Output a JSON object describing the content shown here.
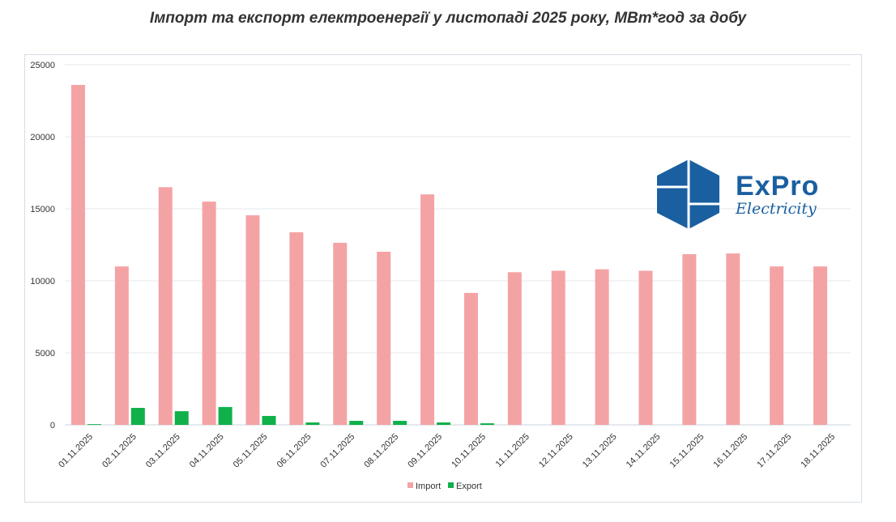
{
  "chart_data": {
    "type": "bar",
    "title": "Імпорт та експорт електроенергії у листопаді 2025 року, МВт*год за добу",
    "categories": [
      "01.11.2025",
      "02.11.2025",
      "03.11.2025",
      "04.11.2025",
      "05.11.2025",
      "06.11.2025",
      "07.11.2025",
      "08.11.2025",
      "09.11.2025",
      "10.11.2025",
      "11.11.2025",
      "12.11.2025",
      "13.11.2025",
      "14.11.2025",
      "15.11.2025",
      "16.11.2025",
      "17.11.2025",
      "18.11.2025"
    ],
    "series": [
      {
        "name": "Import",
        "color": "#f4a3a5",
        "values": [
          23600,
          11000,
          16500,
          15500,
          14550,
          13370,
          12640,
          12020,
          16000,
          9160,
          10600,
          10700,
          10800,
          10700,
          11850,
          11900,
          11000,
          11000
        ]
      },
      {
        "name": "Export",
        "color": "#10b04a",
        "values": [
          50,
          1180,
          950,
          1240,
          620,
          170,
          280,
          280,
          170,
          110,
          0,
          0,
          0,
          0,
          0,
          0,
          0,
          0
        ]
      }
    ],
    "ylim": [
      0,
      25000
    ],
    "yticks": [
      "0",
      "5000",
      "10000",
      "15000",
      "20000",
      "25000"
    ],
    "grid": true,
    "legend": "bottom"
  },
  "logo": {
    "name": "ExPro",
    "sub": "Electricity"
  }
}
